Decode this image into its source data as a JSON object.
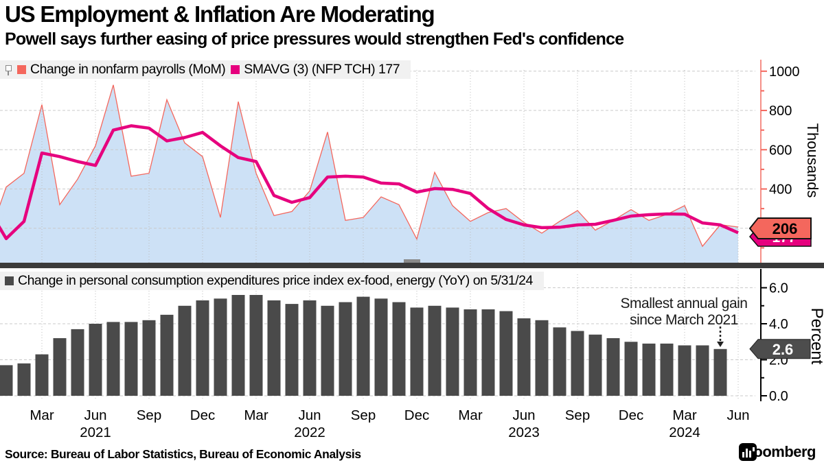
{
  "header": {
    "title": "US Employment & Inflation Are Moderating",
    "subtitle": "Powell says further easing of price pressures would strengthen Fed's confidence"
  },
  "legend_top": {
    "items": [
      {
        "label": "Change in nonfarm payrolls (MoM)",
        "color": "#f4675d"
      },
      {
        "label": "SMAVG (3) (NFP TCH) 177",
        "color": "#e6007e"
      }
    ]
  },
  "legend_bottom": {
    "items": [
      {
        "label": "Change in personal consumption expenditures price index ex-food, energy (YoY) on 5/31/24",
        "color": "#4a4a4a"
      }
    ]
  },
  "annotation": {
    "line1": "Smallest annual gain",
    "line2": "since March 2021"
  },
  "footer": {
    "source": "Source: Bureau of Labor Statistics, Bureau of Economic Analysis",
    "logo_text": "Bloomberg"
  },
  "colors": {
    "salmon": "#f4675d",
    "salmon_axis": "#f58f88",
    "area_fill": "#cde1f6",
    "magenta": "#e6007e",
    "bar_gray": "#4a4a4a",
    "badge_gray": "#4d4d4d",
    "divider": "#3a3a3a",
    "grid": "#c9c9c9",
    "legend_bg": "#f1f1f1"
  },
  "xaxis": {
    "ticks": [
      {
        "label": "Mar",
        "index": 2
      },
      {
        "label": "Jun",
        "index": 5,
        "year": "2021"
      },
      {
        "label": "Sep",
        "index": 8
      },
      {
        "label": "Dec",
        "index": 11
      },
      {
        "label": "Mar",
        "index": 14
      },
      {
        "label": "Jun",
        "index": 17,
        "year": "2022"
      },
      {
        "label": "Sep",
        "index": 20
      },
      {
        "label": "Dec",
        "index": 23
      },
      {
        "label": "Mar",
        "index": 26
      },
      {
        "label": "Jun",
        "index": 29,
        "year": "2023"
      },
      {
        "label": "Sep",
        "index": 32
      },
      {
        "label": "Dec",
        "index": 35
      },
      {
        "label": "Mar",
        "index": 38,
        "year": "2024"
      },
      {
        "label": "Jun",
        "index": 41
      }
    ]
  },
  "chart_data": [
    {
      "type": "area",
      "title": "Change in nonfarm payrolls (MoM)",
      "ylabel": "Thousands",
      "ylim": [
        0,
        1050
      ],
      "grid": true,
      "legend_position": "top-left",
      "yticks": [
        {
          "v": 1000,
          "label": "1000"
        },
        {
          "v": 800,
          "label": "800"
        },
        {
          "v": 600,
          "label": "600"
        },
        {
          "v": 400,
          "label": "400"
        },
        {
          "v": 200,
          "label": "200"
        }
      ],
      "yticks_minor": [
        100,
        300,
        500,
        700,
        900
      ],
      "categories": [
        "Jan 2021",
        "Feb 2021",
        "Mar 2021",
        "Apr 2021",
        "May 2021",
        "Jun 2021",
        "Jul 2021",
        "Aug 2021",
        "Sep 2021",
        "Oct 2021",
        "Nov 2021",
        "Dec 2021",
        "Jan 2022",
        "Feb 2022",
        "Mar 2022",
        "Apr 2022",
        "May 2022",
        "Jun 2022",
        "Jul 2022",
        "Aug 2022",
        "Sep 2022",
        "Oct 2022",
        "Nov 2022",
        "Dec 2022",
        "Jan 2023",
        "Feb 2023",
        "Mar 2023",
        "Apr 2023",
        "May 2023",
        "Jun 2023",
        "Jul 2023",
        "Aug 2023",
        "Sep 2023",
        "Oct 2023",
        "Nov 2023",
        "Dec 2023",
        "Jan 2024",
        "Feb 2024",
        "Mar 2024",
        "Apr 2024",
        "May 2024",
        "Jun 2024"
      ],
      "series": [
        {
          "name": "Change in nonfarm payrolls (MoM)",
          "style": "area",
          "color": "#f4675d",
          "fill": "#cde1f6",
          "values": [
            410,
            480,
            830,
            320,
            450,
            620,
            930,
            465,
            480,
            855,
            635,
            565,
            255,
            845,
            480,
            265,
            285,
            390,
            690,
            240,
            255,
            360,
            320,
            145,
            485,
            315,
            235,
            280,
            300,
            230,
            175,
            235,
            290,
            190,
            240,
            295,
            240,
            270,
            315,
            108,
            218,
            206
          ]
        },
        {
          "name": "SMAVG (3) (NFP TCH) 177",
          "style": "line",
          "color": "#e6007e",
          "values": [
            147,
            235,
            583,
            565,
            540,
            520,
            700,
            722,
            710,
            645,
            662,
            688,
            620,
            560,
            540,
            367,
            332,
            356,
            461,
            465,
            461,
            430,
            426,
            384,
            402,
            398,
            377,
            300,
            245,
            217,
            203,
            205,
            217,
            220,
            240,
            262,
            269,
            273,
            272,
            227,
            217,
            177
          ]
        }
      ],
      "lead_in": {
        "payrolls": 150,
        "smavg": 300
      },
      "last_badges": [
        {
          "label": "206",
          "value": 206,
          "bg": "#f4675d",
          "fg": "#000000",
          "border": "#111111"
        },
        {
          "label": "177",
          "value": 177,
          "bg": "#e6007e",
          "fg": "#ffffff",
          "border": "#111111"
        }
      ]
    },
    {
      "type": "bar",
      "title": "Change in personal consumption expenditures price index ex-food, energy (YoY) on 5/31/24",
      "ylabel": "Percent",
      "ylim": [
        0,
        7
      ],
      "grid": true,
      "bar_color": "#4a4a4a",
      "yticks": [
        {
          "v": 6,
          "label": "6.0"
        },
        {
          "v": 4,
          "label": "4.0"
        },
        {
          "v": 2,
          "label": "2.0"
        },
        {
          "v": 0,
          "label": "0.0"
        }
      ],
      "yticks_minor": [
        1,
        3,
        5
      ],
      "categories": [
        "Jan 2021",
        "Feb 2021",
        "Mar 2021",
        "Apr 2021",
        "May 2021",
        "Jun 2021",
        "Jul 2021",
        "Aug 2021",
        "Sep 2021",
        "Oct 2021",
        "Nov 2021",
        "Dec 2021",
        "Jan 2022",
        "Feb 2022",
        "Mar 2022",
        "Apr 2022",
        "May 2022",
        "Jun 2022",
        "Jul 2022",
        "Aug 2022",
        "Sep 2022",
        "Oct 2022",
        "Nov 2022",
        "Dec 2022",
        "Jan 2023",
        "Feb 2023",
        "Mar 2023",
        "Apr 2023",
        "May 2023",
        "Jun 2023",
        "Jul 2023",
        "Aug 2023",
        "Sep 2023",
        "Oct 2023",
        "Nov 2023",
        "Dec 2023",
        "Jan 2024",
        "Feb 2024",
        "Mar 2024",
        "Apr 2024",
        "May 2024"
      ],
      "values": [
        1.7,
        1.8,
        2.3,
        3.2,
        3.7,
        4.0,
        4.1,
        4.1,
        4.2,
        4.5,
        5.0,
        5.3,
        5.4,
        5.6,
        5.6,
        5.3,
        5.1,
        5.3,
        5.0,
        5.2,
        5.5,
        5.4,
        5.2,
        4.9,
        5.0,
        4.9,
        4.8,
        4.8,
        4.7,
        4.3,
        4.2,
        3.8,
        3.6,
        3.4,
        3.2,
        3.0,
        2.9,
        2.9,
        2.8,
        2.8,
        2.6
      ],
      "annotation": {
        "text": "Smallest annual gain since March 2021",
        "points_to": "May 2024"
      },
      "last_badge": {
        "label": "2.6",
        "value": 2.6,
        "bg": "#4d4d4d",
        "fg": "#ffffff"
      }
    }
  ]
}
